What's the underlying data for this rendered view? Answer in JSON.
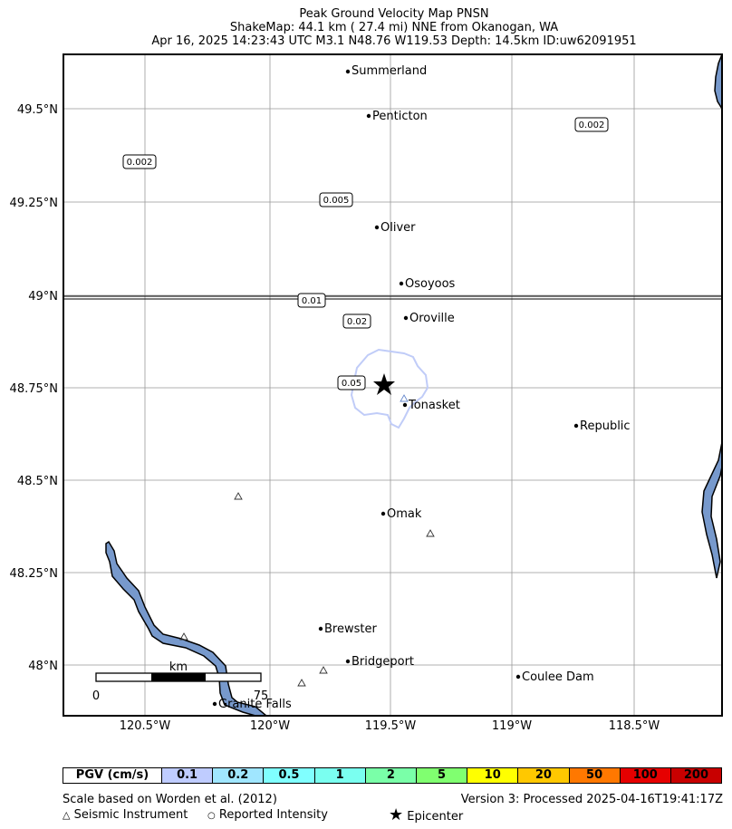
{
  "title": {
    "line1": "Peak Ground Velocity Map PNSN",
    "line2": "ShakeMap: 44.1 km (  27.4 mi) NNE from Okanogan, WA",
    "line3": "Apr 16, 2025 14:23:43 UTC M3.1 N48.76 W119.53 Depth: 14.5km ID:uw62091951"
  },
  "axes": {
    "lat_ticks": [
      "49.5°N",
      "49.25°N",
      "49°N",
      "48.75°N",
      "48.5°N",
      "48.25°N",
      "48°N"
    ],
    "lon_ticks": [
      "120.5°W",
      "120°W",
      "119.5°W",
      "119°W",
      "118.5°W"
    ]
  },
  "cities": [
    "Summerland",
    "Penticton",
    "Oliver",
    "Osoyoos",
    "Oroville",
    "Tonasket",
    "Republic",
    "Omak",
    "Brewster",
    "Bridgeport",
    "Coulee Dam",
    "Granite Falls"
  ],
  "contour_labels": [
    "0.002",
    "0.002",
    "0.005",
    "0.01",
    "0.02",
    "0.05"
  ],
  "scalebar": {
    "unit": "km",
    "start": "0",
    "end": "75"
  },
  "legend": {
    "header": "PGV (cm/s)",
    "bins": [
      {
        "label": "0.1",
        "color": "#bfccff"
      },
      {
        "label": "0.2",
        "color": "#a0e6ff"
      },
      {
        "label": "0.5",
        "color": "#80ffff"
      },
      {
        "label": "1",
        "color": "#7afff0"
      },
      {
        "label": "2",
        "color": "#7affa8"
      },
      {
        "label": "5",
        "color": "#80ff70"
      },
      {
        "label": "10",
        "color": "#ffff00"
      },
      {
        "label": "20",
        "color": "#ffc800"
      },
      {
        "label": "50",
        "color": "#ff7800"
      },
      {
        "label": "100",
        "color": "#e60000"
      },
      {
        "label": "200",
        "color": "#c80000"
      }
    ]
  },
  "footer": {
    "scale_note": "Scale based on Worden et al. (2012)",
    "version": "Version 3: Processed 2025-04-16T19:41:17Z",
    "key_instrument": "Seismic Instrument",
    "key_reported": "Reported Intensity",
    "key_epicenter": "Epicenter"
  },
  "colors": {
    "water": "#7799cc",
    "contour": "#c0ccf8"
  }
}
